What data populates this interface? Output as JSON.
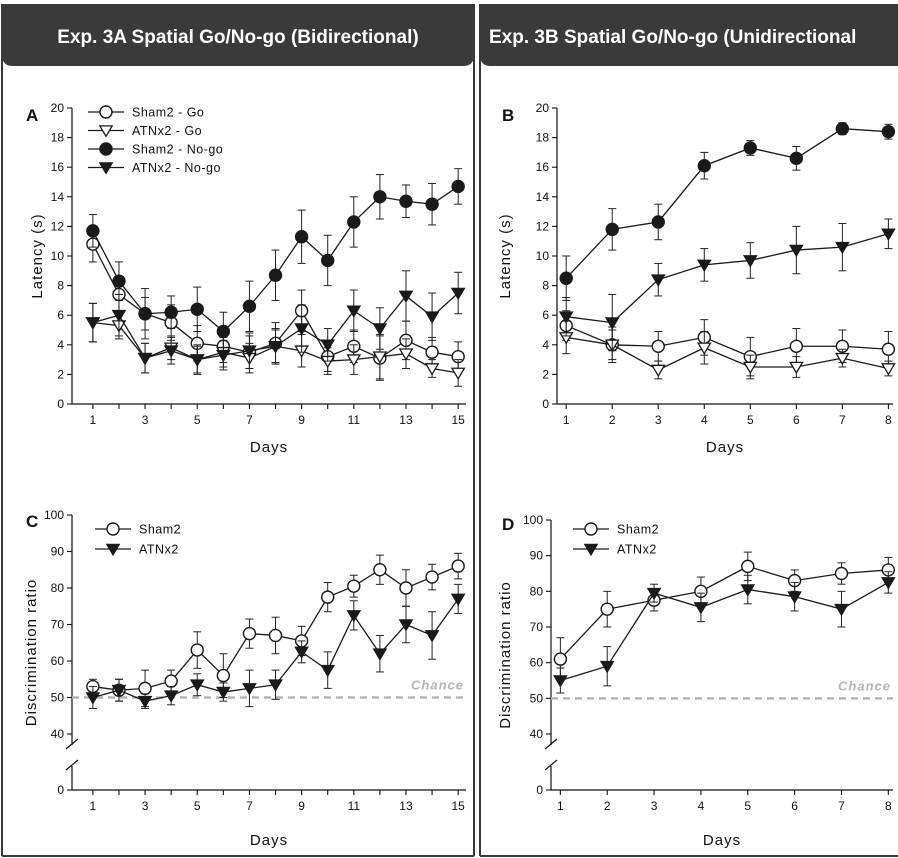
{
  "titles": {
    "left": "Exp. 3A Spatial Go/No-go (Bidirectional)",
    "right": "Exp. 3B Spatial Go/No-go (Unidirectional"
  },
  "colors": {
    "header": "#3a3a3a",
    "chance_line": "#b5b5b5",
    "series_fill_open": "#ffffff",
    "series_fill_filled": "#1a1a1a"
  },
  "chart_data": [
    {
      "panel": "A",
      "type": "line",
      "xlabel": "Days",
      "ylabel": "Latency (s)",
      "xlim": [
        0.2,
        15.3
      ],
      "ylim": [
        0,
        20
      ],
      "xticks": [
        1,
        2,
        3,
        4,
        5,
        6,
        7,
        8,
        9,
        10,
        11,
        12,
        13,
        14,
        15
      ],
      "xtick_labels": [
        "1",
        "",
        "3",
        "",
        "5",
        "",
        "7",
        "",
        "9",
        "",
        "11",
        "",
        "13",
        "",
        "15"
      ],
      "yticks": [
        0,
        2,
        4,
        6,
        8,
        10,
        12,
        14,
        16,
        18,
        20
      ],
      "legend": "top-left",
      "x": [
        1,
        2,
        3,
        4,
        5,
        6,
        7,
        8,
        9,
        10,
        11,
        12,
        13,
        14,
        15
      ],
      "series": [
        {
          "name": "Sham2 - Go",
          "marker": "circle-open",
          "values": [
            10.8,
            7.4,
            6.1,
            5.5,
            4.1,
            3.9,
            3.5,
            4.1,
            6.3,
            3.2,
            3.9,
            3.1,
            4.3,
            3.5,
            3.2
          ],
          "errors": [
            1.2,
            1.1,
            1.1,
            1.2,
            1.2,
            1.1,
            1.1,
            1.4,
            1.4,
            1.0,
            1.1,
            1.5,
            1.3,
            1.0,
            1.0
          ]
        },
        {
          "name": "ATNx2 - Go",
          "marker": "triangle-open",
          "values": [
            5.5,
            5.3,
            3.1,
            3.8,
            3.0,
            3.5,
            3.1,
            3.9,
            3.6,
            2.9,
            3.0,
            3.2,
            3.4,
            2.4,
            2.1
          ],
          "errors": [
            1.3,
            0.9,
            1.0,
            0.8,
            0.9,
            1.0,
            1.0,
            1.1,
            1.1,
            0.9,
            1.0,
            1.5,
            1.0,
            0.6,
            0.9
          ]
        },
        {
          "name": "Sham2 - No-go",
          "marker": "circle-filled",
          "values": [
            11.7,
            8.3,
            6.1,
            6.2,
            6.4,
            4.9,
            6.6,
            8.7,
            11.3,
            9.7,
            12.3,
            14.0,
            13.7,
            13.5,
            14.7
          ],
          "errors": [
            1.1,
            1.3,
            1.7,
            1.1,
            1.5,
            1.3,
            1.7,
            1.7,
            1.8,
            1.7,
            1.7,
            1.5,
            1.1,
            1.4,
            1.2
          ]
        },
        {
          "name": "ATNx2 - No-go",
          "marker": "triangle-filled",
          "values": [
            5.5,
            6.0,
            3.1,
            3.6,
            3.0,
            3.3,
            3.6,
            3.9,
            5.1,
            4.0,
            6.3,
            5.1,
            7.3,
            5.9,
            7.5
          ],
          "errors": [
            1.3,
            1.4,
            1.0,
            0.9,
            1.0,
            1.0,
            1.2,
            1.2,
            1.6,
            1.1,
            1.4,
            1.4,
            1.7,
            1.6,
            1.4
          ]
        }
      ]
    },
    {
      "panel": "B",
      "type": "line",
      "xlabel": "Days",
      "ylabel": "Latency (s)",
      "xlim": [
        0.8,
        8.1
      ],
      "ylim": [
        0,
        20
      ],
      "xticks": [
        1,
        2,
        3,
        4,
        5,
        6,
        7,
        8
      ],
      "xtick_labels": [
        "1",
        "2",
        "3",
        "4",
        "5",
        "6",
        "7",
        "8"
      ],
      "yticks": [
        0,
        2,
        4,
        6,
        8,
        10,
        12,
        14,
        16,
        18,
        20
      ],
      "x": [
        1,
        2,
        3,
        4,
        5,
        6,
        7,
        8
      ],
      "series": [
        {
          "name": "Sham2 - Go",
          "marker": "circle-open",
          "values": [
            5.3,
            4.0,
            3.9,
            4.5,
            3.2,
            3.9,
            3.9,
            3.7
          ],
          "errors": [
            1.0,
            1.2,
            1.0,
            1.2,
            1.3,
            1.2,
            1.1,
            1.2
          ]
        },
        {
          "name": "ATNx2 - Go",
          "marker": "triangle-open",
          "values": [
            4.5,
            4.0,
            2.3,
            3.8,
            2.5,
            2.5,
            3.1,
            2.4
          ],
          "errors": [
            1.1,
            1.0,
            0.6,
            1.1,
            0.8,
            0.7,
            0.6,
            0.5
          ]
        },
        {
          "name": "Sham2 - No-go",
          "marker": "circle-filled",
          "values": [
            8.5,
            11.8,
            12.3,
            16.1,
            17.3,
            16.6,
            18.6,
            18.4
          ],
          "errors": [
            1.5,
            1.4,
            1.2,
            0.9,
            0.5,
            0.8,
            0.4,
            0.5
          ]
        },
        {
          "name": "ATNx2 - No-go",
          "marker": "triangle-filled",
          "values": [
            5.9,
            5.5,
            8.4,
            9.4,
            9.7,
            10.4,
            10.6,
            11.5
          ],
          "errors": [
            1.3,
            1.9,
            1.1,
            1.1,
            1.2,
            1.6,
            1.6,
            1.0
          ]
        }
      ]
    },
    {
      "panel": "C",
      "type": "line",
      "xlabel": "Days",
      "ylabel": "Discrimination ratio",
      "xlim": [
        0.2,
        15.3
      ],
      "ylim": [
        30,
        100
      ],
      "axis_break": true,
      "xticks": [
        1,
        2,
        3,
        4,
        5,
        6,
        7,
        8,
        9,
        10,
        11,
        12,
        13,
        14,
        15
      ],
      "xtick_labels": [
        "1",
        "",
        "3",
        "",
        "5",
        "",
        "7",
        "",
        "9",
        "",
        "11",
        "",
        "13",
        "",
        "15"
      ],
      "yticks": [
        0,
        40,
        50,
        60,
        70,
        80,
        90,
        100
      ],
      "chance_level": 50,
      "chance_label": "Chance",
      "legend": "top-left",
      "x": [
        1,
        2,
        3,
        4,
        5,
        6,
        7,
        8,
        9,
        10,
        11,
        12,
        13,
        14,
        15
      ],
      "series": [
        {
          "name": "Sham2",
          "marker": "circle-open",
          "values": [
            53,
            52,
            52.5,
            54.5,
            63,
            56,
            67.5,
            67,
            65.5,
            77.5,
            80.5,
            85,
            80,
            83,
            86
          ],
          "errors": [
            2,
            3,
            5,
            3,
            5,
            6,
            4,
            5,
            4,
            4,
            3,
            4,
            5,
            3.5,
            3.5
          ]
        },
        {
          "name": "ATNx2",
          "marker": "triangle-filled",
          "values": [
            50,
            52,
            49,
            50.5,
            53.5,
            51.5,
            52.5,
            53.5,
            62.5,
            57.5,
            72.5,
            62,
            70,
            67,
            77
          ],
          "errors": [
            3,
            3,
            2,
            2.5,
            3,
            2.5,
            5,
            4,
            3,
            5,
            4,
            5,
            5,
            6.5,
            4
          ]
        }
      ]
    },
    {
      "panel": "D",
      "type": "line",
      "xlabel": "Days",
      "ylabel": "Discrimination ratio",
      "xlim": [
        0.8,
        8.1
      ],
      "ylim": [
        30,
        100
      ],
      "axis_break": true,
      "xticks": [
        1,
        2,
        3,
        4,
        5,
        6,
        7,
        8
      ],
      "xtick_labels": [
        "1",
        "2",
        "3",
        "4",
        "5",
        "6",
        "7",
        "8"
      ],
      "yticks": [
        0,
        40,
        50,
        60,
        70,
        80,
        90,
        100
      ],
      "chance_level": 50,
      "chance_label": "Chance",
      "legend": "top-left",
      "x": [
        1,
        2,
        3,
        4,
        5,
        6,
        7,
        8
      ],
      "series": [
        {
          "name": "Sham2",
          "marker": "circle-open",
          "values": [
            61,
            75,
            77.5,
            80,
            87,
            83,
            85,
            86
          ],
          "errors": [
            6,
            5,
            3,
            4,
            4,
            3,
            3,
            3.5
          ]
        },
        {
          "name": "ATNx2",
          "marker": "triangle-filled",
          "values": [
            55,
            59,
            79.5,
            75.5,
            80.5,
            78.5,
            75,
            82.5
          ],
          "errors": [
            3.5,
            5.5,
            2.5,
            4,
            4,
            4,
            5,
            3
          ]
        }
      ]
    }
  ]
}
